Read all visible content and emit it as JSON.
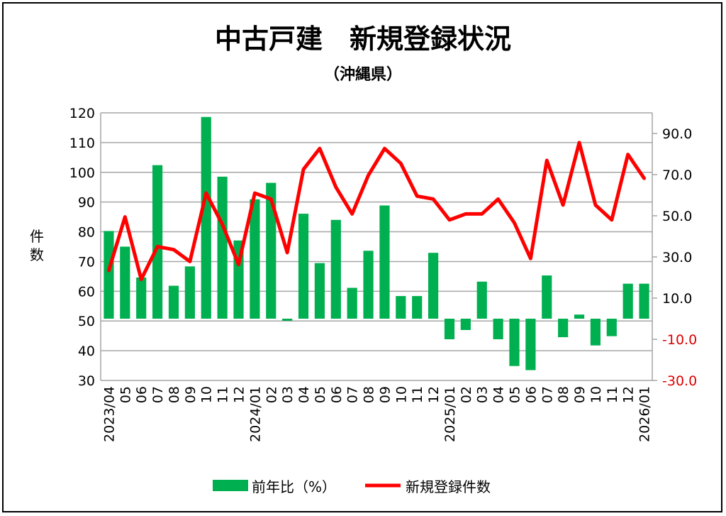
{
  "chart_data": {
    "type": "bar+line",
    "title": "中古戸建　新規登録状況",
    "subtitle": "（沖縄県）",
    "ylabel": "件数",
    "categories": [
      "2023/04",
      "05",
      "06",
      "07",
      "08",
      "09",
      "10",
      "11",
      "12",
      "2024/01",
      "02",
      "03",
      "04",
      "05",
      "06",
      "07",
      "08",
      "09",
      "10",
      "11",
      "12",
      "2025/01",
      "02",
      "03",
      "04",
      "05",
      "06",
      "07",
      "08",
      "09",
      "10",
      "11",
      "12",
      "2026/01"
    ],
    "left_axis": {
      "min": 30,
      "max": 120,
      "ticks": [
        30,
        40,
        50,
        60,
        70,
        80,
        90,
        100,
        110,
        120
      ],
      "grid": true
    },
    "right_axis": {
      "min": -30,
      "max": 100,
      "ticks": [
        "-30.0",
        "-10.0",
        "10.0",
        "30.0",
        "50.0",
        "70.0",
        "90.0"
      ],
      "negative_color": "#e00000"
    },
    "series": [
      {
        "name": "前年比（%）",
        "type": "bar",
        "axis": "right",
        "color": "#00b050",
        "values": [
          42.6,
          35,
          20,
          74.6,
          16,
          25.4,
          98,
          69,
          38,
          58,
          66,
          -1,
          51,
          27,
          48,
          15,
          33,
          55,
          11,
          11,
          32,
          -10,
          -5.5,
          18,
          -10,
          -23,
          -25,
          21,
          -9,
          2,
          -13,
          -8.5,
          17,
          17
        ]
      },
      {
        "name": "新規登録件数",
        "type": "line",
        "axis": "left",
        "color": "#ff0000",
        "values": [
          67,
          85,
          64,
          75,
          74,
          70,
          93,
          82.5,
          69,
          93,
          91,
          73,
          101,
          108,
          95,
          86,
          99,
          108,
          103,
          92,
          91,
          84,
          86,
          86,
          91,
          83,
          71,
          104,
          89,
          110,
          89,
          84,
          106,
          98
        ]
      }
    ],
    "legend": "bottom"
  }
}
